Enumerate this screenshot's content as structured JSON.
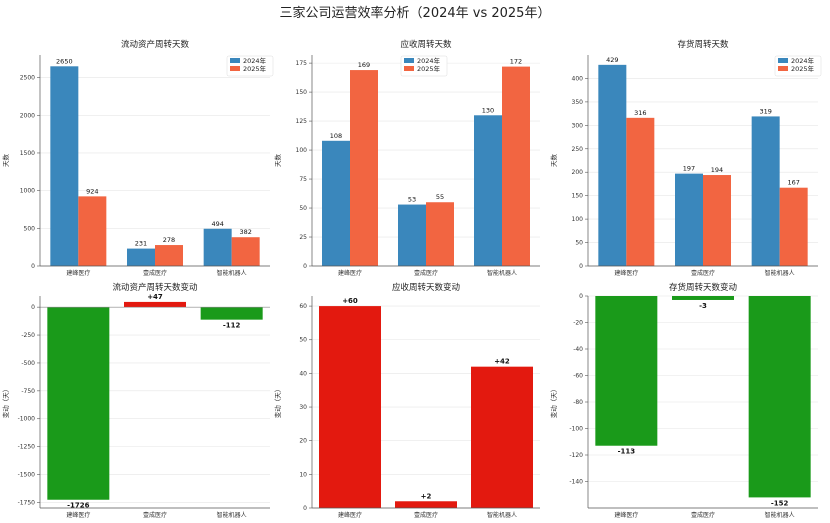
{
  "title": "三家公司运营效率分析（2024年 vs 2025年）",
  "colors": {
    "y2024": "#3a87bc",
    "y2025": "#f26541",
    "increase": "#e3190f",
    "decrease": "#1a9a1a"
  },
  "chart_data": [
    {
      "type": "bar",
      "title": "流动资产周转天数",
      "ylabel": "天数",
      "categories": [
        "建峰医疗",
        "壹成医疗",
        "智能机器人"
      ],
      "series": [
        {
          "name": "2024年",
          "values": [
            2650,
            231,
            494
          ]
        },
        {
          "name": "2025年",
          "values": [
            924,
            278,
            382
          ]
        }
      ],
      "ylim": [
        0,
        2800
      ],
      "yticks": [
        0,
        500,
        1000,
        1500,
        2000,
        2500
      ],
      "legend": "top-right"
    },
    {
      "type": "bar",
      "title": "应收周转天数",
      "ylabel": "天数",
      "categories": [
        "建峰医疗",
        "壹成医疗",
        "智能机器人"
      ],
      "series": [
        {
          "name": "2024年",
          "values": [
            108,
            53,
            130
          ]
        },
        {
          "name": "2025年",
          "values": [
            169,
            55,
            172
          ]
        }
      ],
      "ylim": [
        0,
        182
      ],
      "yticks": [
        0,
        25,
        50,
        75,
        100,
        125,
        150,
        175
      ],
      "legend": "top-center"
    },
    {
      "type": "bar",
      "title": "存货周转天数",
      "ylabel": "天数",
      "categories": [
        "建峰医疗",
        "壹成医疗",
        "智能机器人"
      ],
      "series": [
        {
          "name": "2024年",
          "values": [
            429,
            197,
            319
          ]
        },
        {
          "name": "2025年",
          "values": [
            316,
            194,
            167
          ]
        }
      ],
      "ylim": [
        0,
        450
      ],
      "yticks": [
        0,
        50,
        100,
        150,
        200,
        250,
        300,
        350,
        400
      ],
      "legend": "top-right"
    },
    {
      "type": "bar",
      "title": "流动资产周转天数变动",
      "ylabel": "变动（天）",
      "categories": [
        "建峰医疗",
        "壹成医疗",
        "智能机器人"
      ],
      "values": [
        -1726,
        47,
        -112
      ],
      "labels": [
        "-1726",
        "+47",
        "-112"
      ],
      "ylim": [
        -1800,
        100
      ],
      "yticks": [
        0,
        -250,
        -500,
        -750,
        -1000,
        -1250,
        -1500,
        -1750
      ]
    },
    {
      "type": "bar",
      "title": "应收周转天数变动",
      "ylabel": "变动（天）",
      "categories": [
        "建峰医疗",
        "壹成医疗",
        "智能机器人"
      ],
      "values": [
        60,
        2,
        42
      ],
      "labels": [
        "+60",
        "+2",
        "+42"
      ],
      "ylim": [
        0,
        63
      ],
      "yticks": [
        0,
        10,
        20,
        30,
        40,
        50,
        60
      ]
    },
    {
      "type": "bar",
      "title": "存货周转天数变动",
      "ylabel": "变动（天）",
      "categories": [
        "建峰医疗",
        "壹成医疗",
        "智能机器人"
      ],
      "values": [
        -113,
        -3,
        -152
      ],
      "labels": [
        "-113",
        "-3",
        "-152"
      ],
      "ylim": [
        -160,
        0
      ],
      "yticks": [
        0,
        -20,
        -40,
        -60,
        -80,
        -100,
        -120,
        -140
      ]
    }
  ]
}
